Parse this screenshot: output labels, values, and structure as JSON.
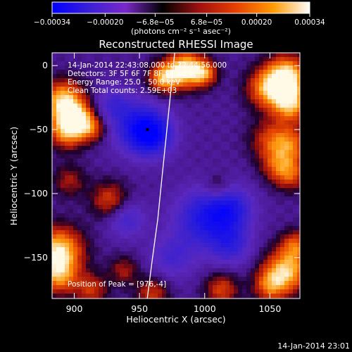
{
  "chart_data": {
    "type": "heatmap",
    "title": "Reconstructed RHESSI Image",
    "xlabel": "Heliocentric X (arcsec)",
    "ylabel": "Heliocentric Y (arcsec)",
    "xlim": [
      883,
      1073
    ],
    "ylim": [
      -182,
      10
    ],
    "x_ticks": [
      900,
      950,
      1000,
      1050
    ],
    "y_ticks": [
      0,
      -50,
      -100,
      -150
    ],
    "colorbar": {
      "range": [
        -0.00034,
        0.00034
      ],
      "tick_values": [
        -0.00034,
        -0.0002,
        -6.8e-05,
        6.8e-05,
        0.0002,
        0.00034
      ],
      "tick_labels": [
        "−0.00034",
        "−0.00020",
        "−6.8e−05",
        "6.8e−05",
        "0.00020",
        "0.00034"
      ],
      "unit_label": "(photons cm⁻² s⁻¹ asec⁻²)",
      "colors": [
        "#0000ff",
        "#3b1fd8",
        "#7a28c8",
        "#000000",
        "#a01010",
        "#e84000",
        "#ff9a00",
        "#ffffff"
      ]
    },
    "annotations": [
      "14-Jan-2014 22:43:08.000 to 22:44:56.000",
      "Detectors: 3F 5F 6F 7F 8F 9F  Att 0",
      "Energy Range: 25.0 - 50.0 keV",
      "Clean     Total counts: 2.59E+03",
      "Position of Peak = [976,-4]"
    ],
    "limb_curve": {
      "x": [
        956,
        960,
        964,
        967,
        970,
        972,
        974,
        976,
        977
      ],
      "y": [
        -182,
        -150,
        -120,
        -90,
        -60,
        -40,
        -20,
        0,
        10
      ],
      "color": "#ffffff"
    },
    "marker": {
      "x": 956,
      "y": -50
    },
    "blobs": [
      {
        "x": 892,
        "y": -28,
        "r": 11,
        "v": 0.95
      },
      {
        "x": 895,
        "y": -50,
        "r": 10,
        "v": 0.85
      },
      {
        "x": 905,
        "y": -42,
        "r": 8,
        "v": 0.6
      },
      {
        "x": 915,
        "y": -50,
        "r": 7,
        "v": 0.4
      },
      {
        "x": 888,
        "y": -145,
        "r": 13,
        "v": 0.95
      },
      {
        "x": 888,
        "y": -165,
        "r": 10,
        "v": 0.6
      },
      {
        "x": 896,
        "y": -90,
        "r": 9,
        "v": 0.35
      },
      {
        "x": 927,
        "y": -105,
        "r": 10,
        "v": 0.5
      },
      {
        "x": 913,
        "y": -175,
        "r": 9,
        "v": 0.45
      },
      {
        "x": 985,
        "y": -3,
        "r": 10,
        "v": 1.0
      },
      {
        "x": 968,
        "y": -10,
        "r": 8,
        "v": 0.75
      },
      {
        "x": 1000,
        "y": -6,
        "r": 7,
        "v": 0.6
      },
      {
        "x": 1048,
        "y": -18,
        "r": 11,
        "v": 0.7
      },
      {
        "x": 1063,
        "y": -8,
        "r": 11,
        "v": 0.95
      },
      {
        "x": 1066,
        "y": -30,
        "r": 10,
        "v": 0.8
      },
      {
        "x": 1050,
        "y": -58,
        "r": 11,
        "v": 0.45
      },
      {
        "x": 1066,
        "y": -62,
        "r": 10,
        "v": 0.55
      },
      {
        "x": 1055,
        "y": -78,
        "r": 9,
        "v": 0.4
      },
      {
        "x": 1066,
        "y": -85,
        "r": 9,
        "v": 0.5
      },
      {
        "x": 1063,
        "y": -160,
        "r": 12,
        "v": 0.85
      },
      {
        "x": 1050,
        "y": -172,
        "r": 9,
        "v": 0.55
      },
      {
        "x": 1070,
        "y": -140,
        "r": 8,
        "v": 0.5
      },
      {
        "x": 1013,
        "y": -175,
        "r": 9,
        "v": 0.5
      },
      {
        "x": 960,
        "y": -178,
        "r": 9,
        "v": 0.45
      },
      {
        "x": 1010,
        "y": -95,
        "r": 7,
        "v": 0.3
      },
      {
        "x": 938,
        "y": -160,
        "r": 8,
        "v": 0.35
      },
      {
        "x": 950,
        "y": -48,
        "r": 14,
        "v": -0.7
      },
      {
        "x": 960,
        "y": -55,
        "r": 11,
        "v": -0.6
      },
      {
        "x": 1000,
        "y": -120,
        "r": 16,
        "v": -0.65
      },
      {
        "x": 1020,
        "y": -112,
        "r": 12,
        "v": -0.55
      },
      {
        "x": 940,
        "y": -120,
        "r": 10,
        "v": -0.4
      },
      {
        "x": 1020,
        "y": -140,
        "r": 11,
        "v": -0.45
      },
      {
        "x": 930,
        "y": -30,
        "r": 9,
        "v": -0.35
      },
      {
        "x": 975,
        "y": -150,
        "r": 12,
        "v": -0.35
      }
    ]
  },
  "footer": {
    "timestamp": "14-Jan-2014 23:01"
  }
}
